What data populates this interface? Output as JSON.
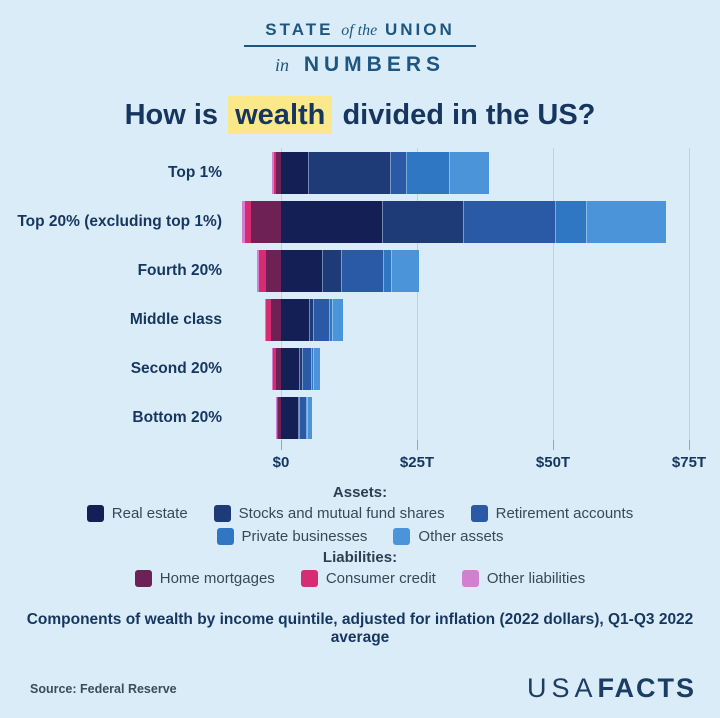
{
  "header": {
    "state": "STATE",
    "of_the": "of the",
    "union": "UNION",
    "in": "in",
    "numbers": "NUMBERS"
  },
  "title": {
    "prefix": "How is",
    "highlight": "wealth",
    "suffix": "divided in the US?",
    "highlight_color": "#fbe88a"
  },
  "legend": {
    "assets_label": "Assets:",
    "liabilities_label": "Liabilities:"
  },
  "footer": {
    "caption": "Components of wealth by income quintile, adjusted for inflation (2022 dollars), Q1-Q3 2022 average",
    "source": "Source: Federal Reserve",
    "logo_usa": "USA",
    "logo_facts": "FACTS"
  },
  "colors": {
    "background": "#d9ecf8",
    "brand_navy": "#1d5680",
    "text_navy": "#17365f",
    "gridline": "#bdd2e0"
  },
  "chart_data": {
    "type": "bar",
    "subtype": "horizontal_stacked_diverging",
    "unit": "trillions of 2022 dollars",
    "categories": [
      "Top 1%",
      "Top 20% (excluding top 1%)",
      "Fourth 20%",
      "Middle class",
      "Second 20%",
      "Bottom 20%"
    ],
    "asset_series": [
      {
        "name": "Real estate",
        "color": "#141f55",
        "values": [
          5.0,
          18.6,
          7.6,
          5.2,
          3.3,
          3.1
        ]
      },
      {
        "name": "Stocks and mutual fund shares",
        "color": "#1e3a77",
        "values": [
          15.1,
          14.9,
          3.5,
          0.7,
          0.5,
          0.3
        ]
      },
      {
        "name": "Retirement accounts",
        "color": "#2a5aa6",
        "values": [
          2.8,
          16.8,
          7.7,
          3.0,
          1.8,
          1.2
        ]
      },
      {
        "name": "Private businesses",
        "color": "#2f77c3",
        "values": [
          7.9,
          5.7,
          1.5,
          0.5,
          0.3,
          0.2
        ]
      },
      {
        "name": "Other assets",
        "color": "#4b94d9",
        "values": [
          7.4,
          14.7,
          5.0,
          2.0,
          1.3,
          0.9
        ]
      }
    ],
    "liability_series": [
      {
        "name": "Home mortgages",
        "color": "#6d2154",
        "values": [
          0.9,
          5.5,
          2.8,
          1.8,
          0.9,
          0.6
        ]
      },
      {
        "name": "Consumer credit",
        "color": "#d42d74",
        "values": [
          0.4,
          1.2,
          1.3,
          0.9,
          0.6,
          0.3
        ]
      },
      {
        "name": "Other liabilities",
        "color": "#d37fd0",
        "values": [
          0.3,
          0.4,
          0.3,
          0.2,
          0.15,
          0.1
        ]
      }
    ],
    "x_ticks": [
      "$0",
      "$25T",
      "$50T",
      "$75T"
    ],
    "x_tick_values": [
      0,
      25,
      50,
      75
    ],
    "xlim": [
      -9,
      79
    ],
    "grid": true,
    "legend_position": "bottom"
  }
}
